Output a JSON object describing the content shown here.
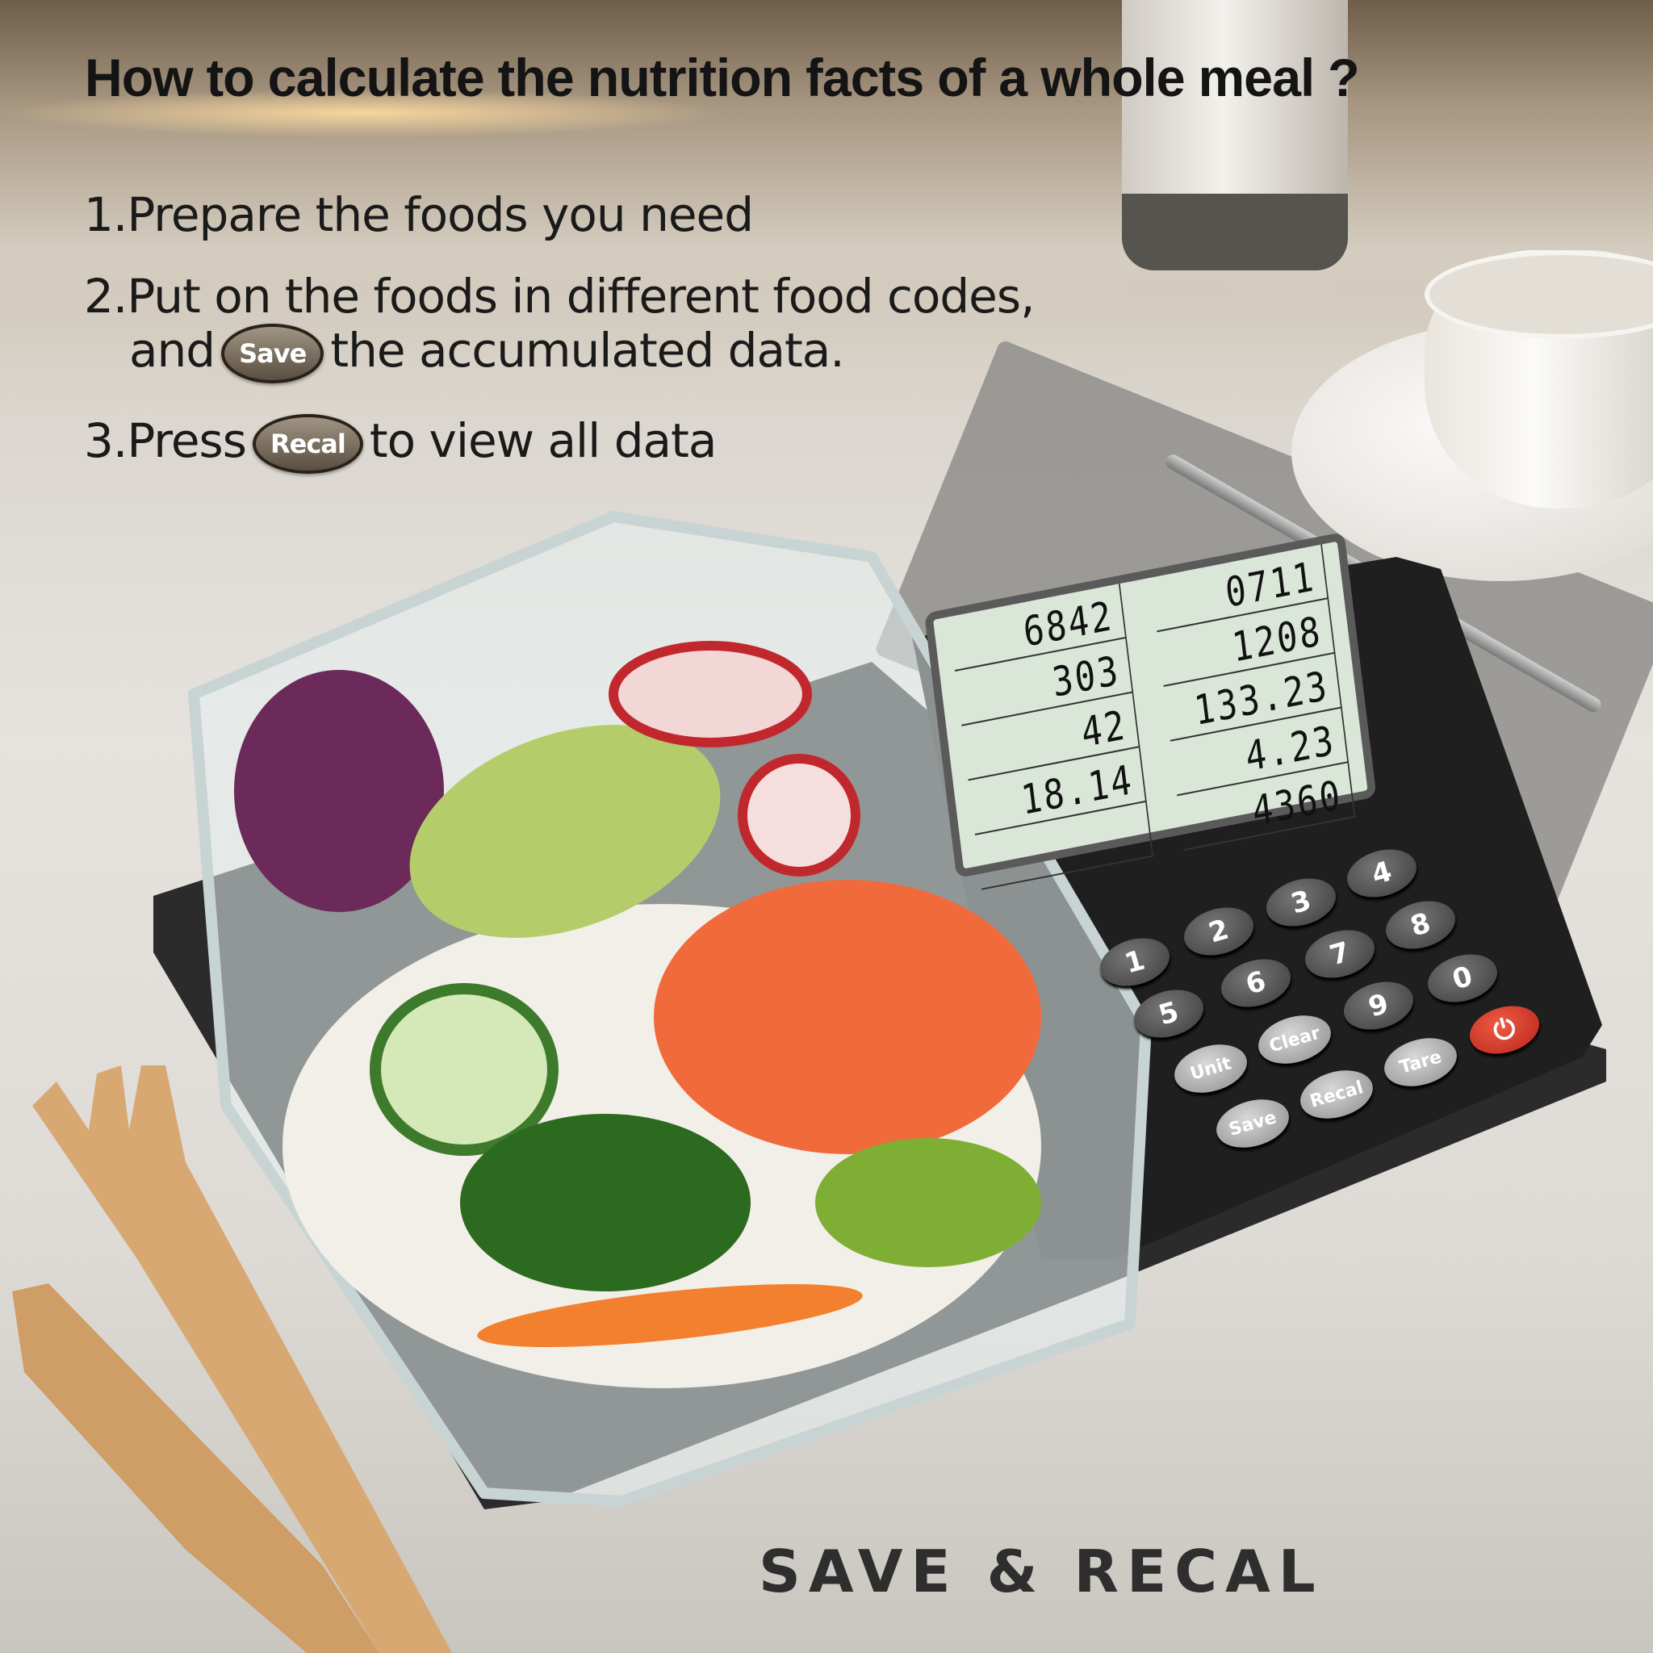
{
  "title": "How to calculate the nutrition facts of a whole meal ?",
  "steps": [
    {
      "text": "1.Prepare the foods you need"
    },
    {
      "text": "2.Put on the foods in different food codes,",
      "text2_before": "and",
      "text2_after": "the accumulated data.",
      "badge": "Save"
    },
    {
      "before": "3.Press",
      "badge": "Recal",
      "after": "to view all data"
    }
  ],
  "footer": "SAVE & RECAL",
  "scale": {
    "lcd_readings": [
      "6842",
      "0711",
      "303",
      "1208",
      "42",
      "133.23",
      "18.14",
      "4.23",
      "",
      "4360"
    ],
    "keys": [
      "1",
      "2",
      "3",
      "4",
      "5",
      "6",
      "7",
      "8",
      "9",
      "0",
      "Clear",
      "Unit",
      "Recal",
      "Tare",
      "Save"
    ],
    "power_icon": "power-icon",
    "power_color": "#e0392b"
  }
}
